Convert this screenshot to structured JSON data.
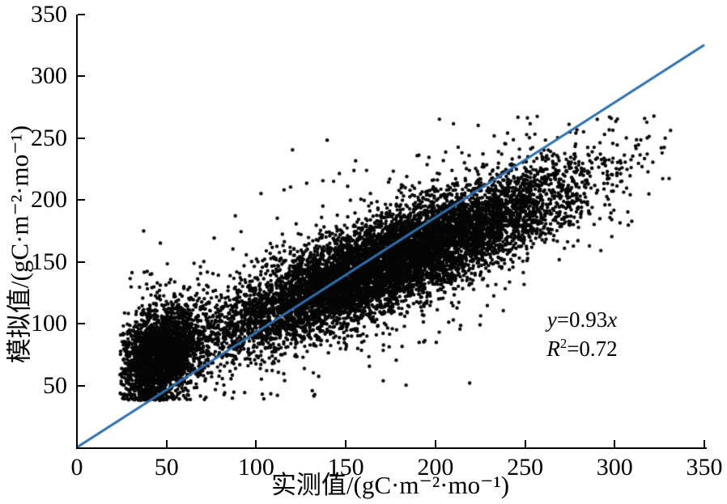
{
  "figure": {
    "background": "#ffffff"
  },
  "chart_data": {
    "type": "scatter",
    "title": "",
    "xlabel": "实测值/(gC·m⁻²·mo⁻¹)",
    "ylabel": "模拟值/(gC·m⁻²·mo⁻¹)",
    "xlim": [
      0,
      350
    ],
    "ylim": [
      0,
      350
    ],
    "x_ticks": [
      0,
      50,
      100,
      150,
      200,
      250,
      300,
      350
    ],
    "y_ticks": [
      50,
      100,
      150,
      200,
      250,
      300,
      350
    ],
    "grid": false,
    "legend": false,
    "point_color": "#060606",
    "fit_line": {
      "slope": 0.93,
      "intercept": 0,
      "x_range": [
        0,
        350
      ],
      "color": "#2e6fad",
      "width": 3,
      "equation_text": "y=0.93x",
      "r_squared_text": "R²=0.72"
    },
    "annotation": {
      "eq": {
        "lhs": "y",
        "mid": "=0.93",
        "rhs": "x"
      },
      "r2": {
        "sym": "R",
        "sup": "2",
        "rest": "=0.72"
      }
    },
    "scatter_cloud": {
      "note": "dense point cloud synthesized to match visible distribution",
      "n": 12000,
      "seed": 42,
      "x_mix": [
        {
          "weight": 0.21,
          "mean": 46,
          "std": 11
        },
        {
          "weight": 0.79,
          "mean": 173,
          "std": 52
        }
      ],
      "x_clip": [
        24,
        332
      ],
      "trend": {
        "slope": 0.585,
        "intercept": 48
      },
      "noise_std": 18,
      "outlier_frac": 0.07,
      "outlier_std": 36,
      "far_outlier_frac": 0.008,
      "far_outlier_std": 58,
      "y_clip": [
        38,
        268
      ],
      "point_radius": 2.2
    }
  }
}
